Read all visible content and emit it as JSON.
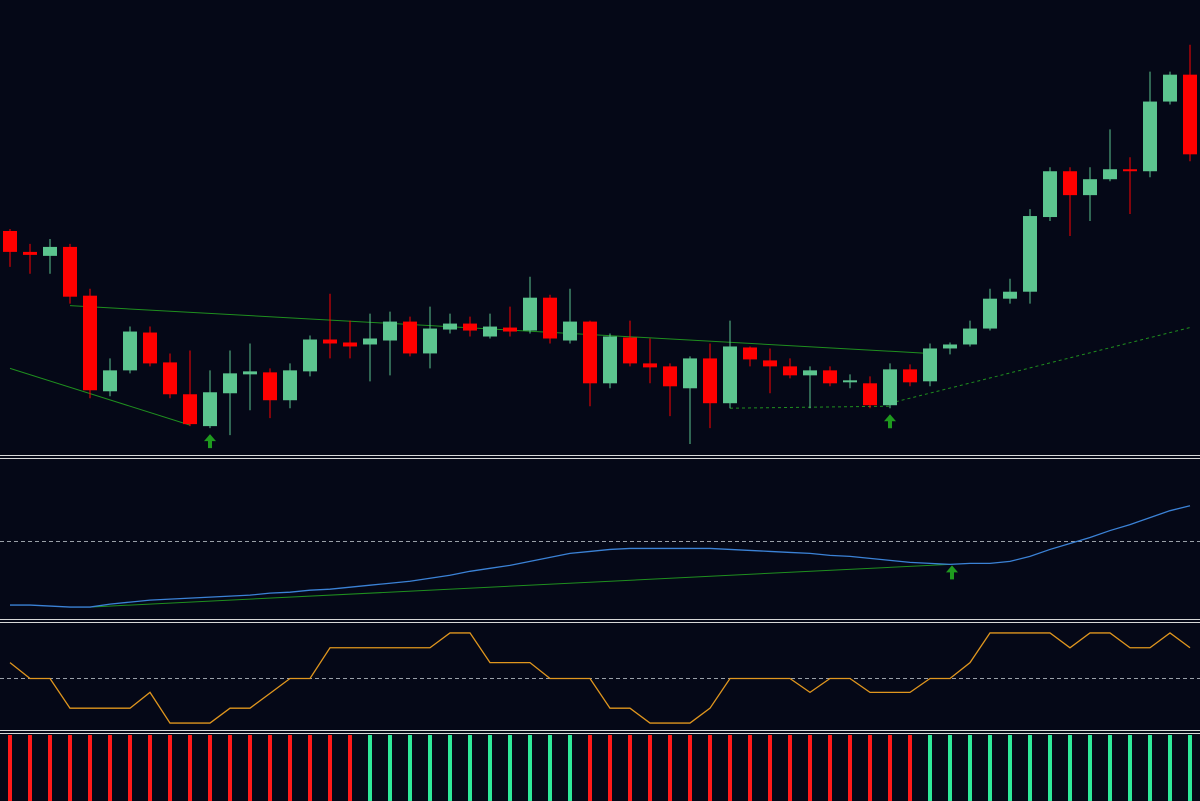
{
  "chart_data": [
    {
      "type": "candlestick",
      "ylim": [
        0,
        455
      ],
      "up_color": "#5cc58f",
      "down_color": "#ff0000",
      "open": [
        223,
        202,
        198,
        207,
        158,
        62,
        83,
        121,
        91,
        59,
        27,
        60,
        79,
        81,
        53,
        82,
        114,
        111,
        109,
        113,
        132,
        100,
        124,
        130,
        117,
        126,
        123,
        156,
        113,
        132,
        70,
        116,
        90,
        87,
        65,
        95,
        50,
        106,
        93,
        87,
        78,
        83,
        71,
        70,
        48,
        84,
        72,
        105,
        109,
        125,
        155,
        162,
        237,
        283,
        259,
        275,
        285,
        283,
        353,
        380
      ],
      "close": [
        202,
        199,
        207,
        157,
        63,
        83,
        122,
        90,
        59,
        29,
        61,
        80,
        82,
        53,
        83,
        114,
        110,
        107,
        115,
        132,
        100,
        125,
        130,
        123,
        127,
        122,
        156,
        115,
        132,
        70,
        117,
        90,
        86,
        67,
        95,
        50,
        107,
        94,
        87,
        78,
        83,
        70,
        73,
        48,
        84,
        71,
        105,
        109,
        125,
        155,
        162,
        238,
        283,
        259,
        275,
        285,
        283,
        353,
        380,
        300
      ],
      "high": [
        225,
        210,
        215,
        210,
        165,
        95,
        127,
        127,
        100,
        103,
        83,
        103,
        110,
        85,
        90,
        118,
        160,
        133,
        140,
        142,
        137,
        147,
        140,
        137,
        140,
        147,
        177,
        159,
        165,
        133,
        120,
        133,
        115,
        90,
        97,
        110,
        133,
        107,
        105,
        95,
        87,
        87,
        79,
        77,
        90,
        89,
        110,
        111,
        133,
        165,
        175,
        245,
        287,
        287,
        287,
        325,
        297,
        383,
        383,
        410
      ],
      "low": [
        187,
        180,
        180,
        150,
        55,
        57,
        80,
        87,
        55,
        27,
        25,
        18,
        43,
        35,
        45,
        77,
        95,
        95,
        72,
        78,
        97,
        85,
        120,
        117,
        115,
        117,
        120,
        110,
        110,
        47,
        65,
        87,
        70,
        37,
        9,
        25,
        45,
        87,
        60,
        75,
        45,
        67,
        65,
        45,
        45,
        67,
        67,
        99,
        107,
        123,
        150,
        150,
        233,
        218,
        233,
        273,
        240,
        277,
        350,
        293
      ],
      "trendlines": [
        {
          "x": [
            3,
            46
          ],
          "values": [
            148,
            100
          ],
          "color": "#1f8f1f",
          "dashed": false
        },
        {
          "x": [
            0,
            9
          ],
          "values": [
            85,
            28
          ],
          "color": "#1f8f1f",
          "dashed": false
        },
        {
          "x": [
            36,
            44
          ],
          "values": [
            45,
            47
          ],
          "color": "#1f8f1f",
          "dashed": true
        },
        {
          "x": [
            44,
            59
          ],
          "values": [
            50,
            126
          ],
          "color": "#1f8f1f",
          "dashed": true
        }
      ],
      "arrows": [
        10,
        44
      ],
      "arrow_color": "#1f9a1f"
    },
    {
      "type": "line",
      "ylim": [
        0,
        158
      ],
      "color": "#3b82d6",
      "values": [
        13,
        13,
        12,
        11,
        11,
        14,
        16,
        18,
        19,
        20,
        21,
        22,
        23,
        25,
        26,
        28,
        29,
        31,
        33,
        35,
        37,
        40,
        43,
        47,
        50,
        53,
        57,
        61,
        65,
        67,
        69,
        70,
        70,
        70,
        70,
        70,
        69,
        68,
        67,
        66,
        65,
        63,
        62,
        60,
        58,
        56,
        55,
        54,
        55,
        55,
        57,
        62,
        69,
        75,
        81,
        88,
        94,
        101,
        108,
        113
      ],
      "levels": [
        77
      ],
      "level_color": "#9aa0a8",
      "trendlines": [
        {
          "x": [
            4,
            47
          ],
          "values": [
            11,
            54
          ],
          "color": "#1f8f1f",
          "dashed": false
        }
      ],
      "arrows": [
        47
      ],
      "arrow_value": 54,
      "arrow_color": "#1f9a1f"
    },
    {
      "type": "line",
      "ylim": [
        0,
        107
      ],
      "color": "#e0961e",
      "values": [
        68,
        52,
        52,
        22,
        22,
        22,
        22,
        38,
        7,
        7,
        7,
        22,
        22,
        37,
        52,
        52,
        83,
        83,
        83,
        83,
        83,
        83,
        98,
        98,
        68,
        68,
        68,
        52,
        52,
        52,
        22,
        22,
        7,
        7,
        7,
        22,
        52,
        52,
        52,
        52,
        38,
        52,
        52,
        38,
        38,
        38,
        52,
        52,
        68,
        98,
        98,
        98,
        98,
        83,
        98,
        98,
        83,
        83,
        98,
        83
      ],
      "levels": [
        52
      ],
      "level_color": "#9aa0a8"
    },
    {
      "type": "signal-bar",
      "up_color": "#2ee89a",
      "down_color": "#ff1a1a",
      "values": [
        -1,
        -1,
        -1,
        -1,
        -1,
        -1,
        -1,
        -1,
        -1,
        -1,
        -1,
        -1,
        -1,
        -1,
        -1,
        -1,
        -1,
        -1,
        1,
        1,
        1,
        1,
        1,
        1,
        1,
        1,
        1,
        1,
        1,
        -1,
        -1,
        -1,
        -1,
        -1,
        -1,
        -1,
        -1,
        -1,
        -1,
        -1,
        -1,
        -1,
        -1,
        -1,
        -1,
        -1,
        1,
        1,
        1,
        1,
        1,
        1,
        1,
        1,
        1,
        1,
        1,
        1,
        1,
        1
      ]
    }
  ]
}
